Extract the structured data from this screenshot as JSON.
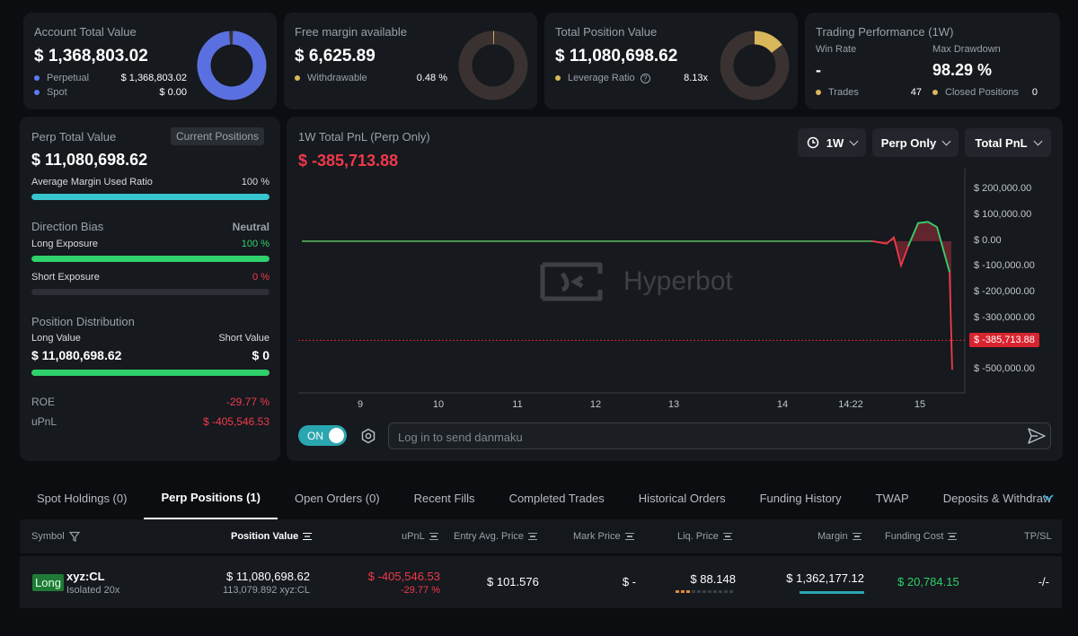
{
  "summary": {
    "account": {
      "title": "Account Total Value",
      "value": "$ 1,368,803.02",
      "rows": [
        {
          "label": "Perpetual",
          "value": "$ 1,368,803.02",
          "color": "#5b7cf5"
        },
        {
          "label": "Spot",
          "value": "$ 0.00",
          "color": "#5b7cf5"
        }
      ],
      "donut_fraction": 1.0,
      "donut_color": "#5b70e0"
    },
    "margin": {
      "title": "Free margin available",
      "value": "$ 6,625.89",
      "row": {
        "label": "Withdrawable",
        "value": "0.48 %",
        "color": "#d9b75b"
      },
      "donut_fraction": 0.0048,
      "donut_color": "#d9b75b"
    },
    "position": {
      "title": "Total Position Value",
      "value": "$ 11,080,698.62",
      "row": {
        "label": "Leverage Ratio",
        "value": "8.13x",
        "color": "#d9b75b"
      },
      "donut_fraction": 0.15,
      "donut_color": "#d9b75b"
    },
    "performance": {
      "title": "Trading Performance (1W)",
      "win_rate_label": "Win Rate",
      "win_rate": "-",
      "drawdown_label": "Max Drawdown",
      "drawdown": "98.29 %",
      "trades_label": "Trades",
      "trades": "47",
      "closed_label": "Closed Positions",
      "closed": "0"
    }
  },
  "perp": {
    "title": "Perp Total Value",
    "badge": "Current Positions",
    "value": "$ 11,080,698.62",
    "margin_ratio_label": "Average Margin Used Ratio",
    "margin_ratio": "100 %",
    "margin_ratio_fraction": 1.0,
    "bias_label": "Direction Bias",
    "bias": "Neutral",
    "long_label": "Long Exposure",
    "long": "100 %",
    "long_fraction": 1.0,
    "short_label": "Short Exposure",
    "short": "0 %",
    "short_fraction": 0.0,
    "dist_label": "Position Distribution",
    "long_value_label": "Long Value",
    "short_value_label": "Short Value",
    "long_value": "$ 11,080,698.62",
    "short_value": "$ 0",
    "long_value_fraction": 1.0,
    "roe_label": "ROE",
    "roe": "-29.77 %",
    "upnl_label": "uPnL",
    "upnl": "$ -405,546.53"
  },
  "pnl": {
    "title": "1W Total PnL (Perp Only)",
    "value": "$ -385,713.88",
    "dropdowns": {
      "period": "1W",
      "scope": "Perp Only",
      "metric": "Total PnL"
    },
    "watermark": "Hyperbot",
    "toggle": "ON",
    "danmaku_placeholder": "Log in to send danmaku"
  },
  "chart_data": {
    "type": "line",
    "y_ticks": [
      "$ 200,000.00",
      "$ 100,000.00",
      "$ 0.00",
      "$ -100,000.00",
      "$ -200,000.00",
      "$ -300,000.00",
      "$ -500,000.00"
    ],
    "y_tick_values": [
      200000,
      100000,
      0,
      -100000,
      -200000,
      -300000,
      -500000
    ],
    "x_ticks": [
      "9",
      "10",
      "11",
      "12",
      "13",
      "14",
      "14:22",
      "15"
    ],
    "ylim": [
      -590000,
      240000
    ],
    "current_label": "$ -385,713.88",
    "current_value": -385713.88,
    "series": [
      {
        "values": [
          0,
          0,
          0,
          0,
          0,
          0,
          0,
          0,
          0,
          0,
          0,
          0,
          0,
          -10000,
          15000,
          -95000,
          -20000,
          70000,
          75000,
          55000,
          -120000,
          -500000,
          -385713.88
        ]
      }
    ],
    "colors": {
      "positive": "#2ed16b",
      "negative": "#f0394a",
      "flat": "#5fbf5f"
    }
  },
  "tabs": [
    "Spot Holdings (0)",
    "Perp Positions (1)",
    "Open Orders (0)",
    "Recent Fills",
    "Completed Trades",
    "Historical Orders",
    "Funding History",
    "TWAP",
    "Deposits & Withdraw"
  ],
  "active_tab": 1,
  "table": {
    "headers": {
      "symbol": "Symbol",
      "position_value": "Position Value",
      "upnl": "uPnL",
      "entry": "Entry Avg. Price",
      "mark": "Mark Price",
      "liq": "Liq. Price",
      "margin": "Margin",
      "funding": "Funding Cost",
      "tpsl": "TP/SL"
    },
    "row": {
      "side": "Long",
      "symbol": "xyz:CL",
      "mode": "Isolated 20x",
      "position_value": "$ 11,080,698.62",
      "position_size": "113,079.892 xyz:CL",
      "upnl": "$ -405,546.53",
      "upnl_pct": "-29.77 %",
      "entry": "$ 101.576",
      "mark": "$ -",
      "liq": "$ 88.148",
      "margin": "$ 1,362,177.12",
      "funding": "$ 20,784.15",
      "tpsl": "-/-"
    }
  }
}
